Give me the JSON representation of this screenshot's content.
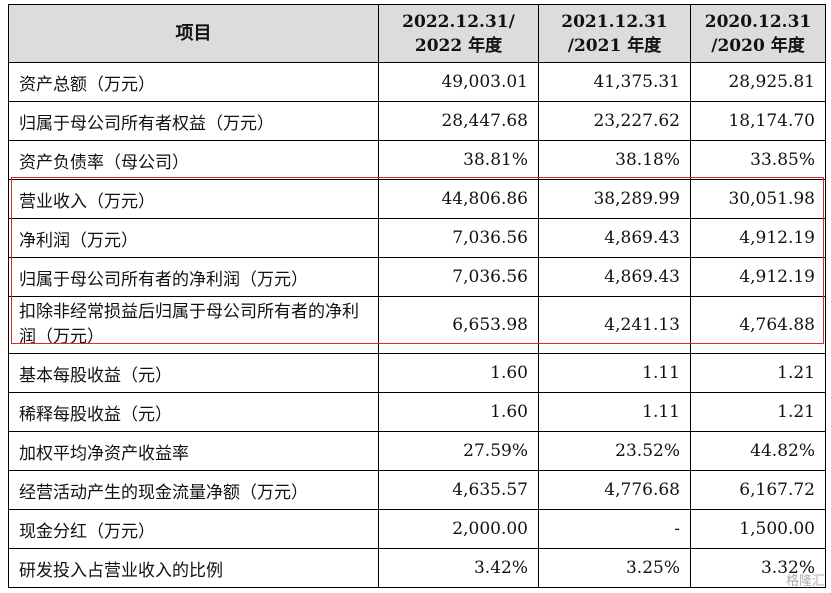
{
  "table": {
    "headers": [
      "项目",
      "2022.12.31/\n2022 年度",
      "2021.12.31\n/2021 年度",
      "2020.12.31\n/2020 年度"
    ],
    "header_lines": [
      [
        "项目"
      ],
      [
        "2022.12.31/",
        "2022 年度"
      ],
      [
        "2021.12.31",
        "/2021 年度"
      ],
      [
        "2020.12.31",
        "/2020 年度"
      ]
    ],
    "rows": [
      {
        "label": "资产总额（万元）",
        "values": [
          "49,003.01",
          "41,375.31",
          "28,925.81"
        ]
      },
      {
        "label": "归属于母公司所有者权益（万元）",
        "values": [
          "28,447.68",
          "23,227.62",
          "18,174.70"
        ]
      },
      {
        "label": "资产负债率（母公司）",
        "values": [
          "38.81%",
          "38.18%",
          "33.85%"
        ]
      },
      {
        "label": "营业收入（万元）",
        "values": [
          "44,806.86",
          "38,289.99",
          "30,051.98"
        ]
      },
      {
        "label": "净利润（万元）",
        "values": [
          "7,036.56",
          "4,869.43",
          "4,912.19"
        ]
      },
      {
        "label": "归属于母公司所有者的净利润（万元）",
        "values": [
          "7,036.56",
          "4,869.43",
          "4,912.19"
        ]
      },
      {
        "label": "扣除非经常损益后归属于母公司所有者的净利润（万元）",
        "values": [
          "6,653.98",
          "4,241.13",
          "4,764.88"
        ]
      },
      {
        "label": "基本每股收益（元）",
        "values": [
          "1.60",
          "1.11",
          "1.21"
        ]
      },
      {
        "label": "稀释每股收益（元）",
        "values": [
          "1.60",
          "1.11",
          "1.21"
        ]
      },
      {
        "label": "加权平均净资产收益率",
        "values": [
          "27.59%",
          "23.52%",
          "44.82%"
        ]
      },
      {
        "label": "经营活动产生的现金流量净额（万元）",
        "values": [
          "4,635.57",
          "4,776.68",
          "6,167.72"
        ]
      },
      {
        "label": "现金分红（万元）",
        "values": [
          "2,000.00",
          "-",
          "1,500.00"
        ]
      },
      {
        "label": "研发投入占营业收入的比例",
        "values": [
          "3.42%",
          "3.25%",
          "3.32%"
        ]
      }
    ],
    "highlight_color": "#d9292b",
    "header_bg": "#dcdcdc"
  },
  "watermark": "格隆汇"
}
